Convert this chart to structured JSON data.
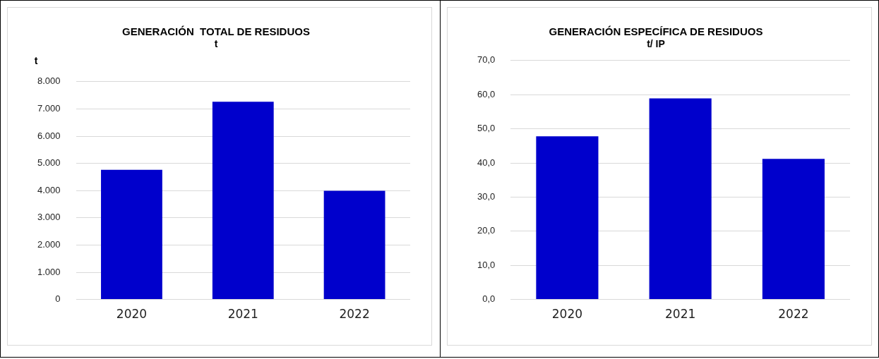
{
  "chart_data": [
    {
      "type": "bar",
      "title": "GENERACIÓN  TOTAL DE RESIDUOS",
      "subtitle": "t",
      "ylabel": "t",
      "categories": [
        "2020",
        "2021",
        "2022"
      ],
      "values": [
        4760,
        7260,
        3990
      ],
      "color": "#0000cc",
      "ylim": [
        0,
        8000
      ],
      "yticks": [
        0,
        {
          "value": 1000,
          "label": "1.000"
        },
        {
          "value": 2000,
          "label": "2.000"
        },
        {
          "value": 3000,
          "label": "3.000"
        },
        {
          "value": 4000,
          "label": "4.000"
        },
        {
          "value": 5000,
          "label": "5.000"
        },
        {
          "value": 6000,
          "label": "6.000"
        },
        {
          "value": 7000,
          "label": "7.000"
        },
        {
          "value": 8000,
          "label": "8.000"
        }
      ],
      "grid": "y",
      "legend": false
    },
    {
      "type": "bar",
      "title": "GENERACIÓN ESPECÍFICA DE RESIDUOS",
      "subtitle": "t/ IP",
      "categories": [
        "2020",
        "2021",
        "2022"
      ],
      "values": [
        47.8,
        58.9,
        41.2
      ],
      "color": "#0000cc",
      "ylim": [
        0,
        70
      ],
      "yticks": [
        {
          "value": 0,
          "label": "0,0"
        },
        {
          "value": 10,
          "label": "10,0"
        },
        {
          "value": 20,
          "label": "20,0"
        },
        {
          "value": 30,
          "label": "30,0"
        },
        {
          "value": 40,
          "label": "40,0"
        },
        {
          "value": 50,
          "label": "50,0"
        },
        {
          "value": 60,
          "label": "60,0"
        },
        {
          "value": 70,
          "label": "70,0"
        }
      ],
      "grid": "y",
      "legend": false
    }
  ]
}
